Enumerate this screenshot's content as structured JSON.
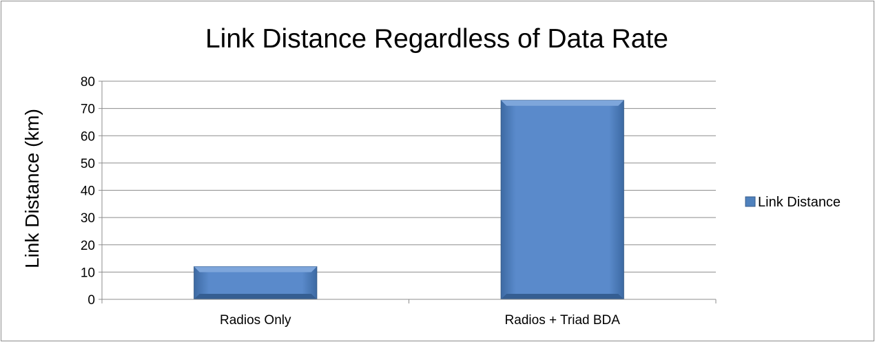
{
  "chart_data": {
    "type": "bar",
    "title": "Link Distance Regardless of Data Rate",
    "xlabel": "",
    "ylabel": "Link Distance (km)",
    "categories": [
      "Radios Only",
      "Radios + Triad BDA"
    ],
    "series": [
      {
        "name": "Link Distance",
        "values": [
          12,
          73
        ],
        "color": "#4f81bd"
      }
    ],
    "ylim": [
      0,
      80
    ],
    "yticks": [
      "0",
      "10",
      "20",
      "30",
      "40",
      "50",
      "60",
      "70",
      "80"
    ],
    "grid": true,
    "legend_position": "right"
  }
}
